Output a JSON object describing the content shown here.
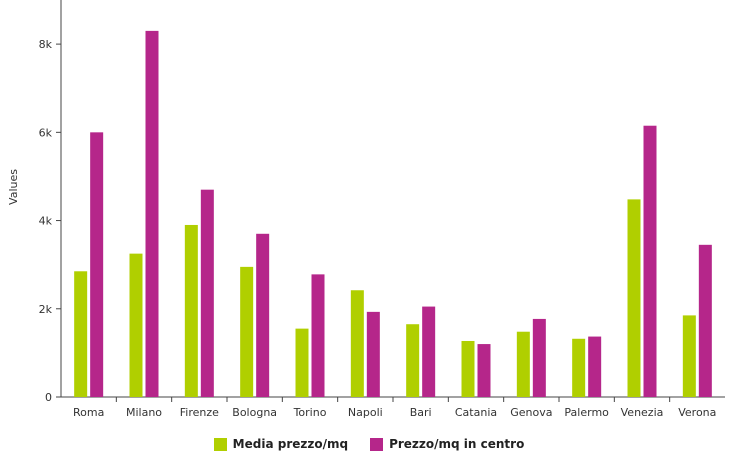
{
  "chart_data": {
    "type": "bar",
    "ylabel": "Values",
    "ylim": [
      0,
      9000
    ],
    "yticks": [
      0,
      2000,
      4000,
      6000,
      8000
    ],
    "ytick_labels": [
      "0",
      "2k",
      "4k",
      "6k",
      "8k"
    ],
    "categories": [
      "Roma",
      "Milano",
      "Firenze",
      "Bologna",
      "Torino",
      "Napoli",
      "Bari",
      "Catania",
      "Genova",
      "Palermo",
      "Venezia",
      "Verona"
    ],
    "series": [
      {
        "name": "Media prezzo/mq",
        "color": "#b0cf00",
        "values": [
          2850,
          3250,
          3900,
          2950,
          1550,
          2420,
          1650,
          1270,
          1480,
          1320,
          4480,
          1850
        ]
      },
      {
        "name": "Prezzo/mq in centro",
        "color": "#b5268a",
        "values": [
          6000,
          8300,
          4700,
          3700,
          2780,
          1930,
          2050,
          1200,
          1770,
          1370,
          6150,
          3450
        ]
      }
    ],
    "legend_position": "bottom-center",
    "grid": false
  }
}
